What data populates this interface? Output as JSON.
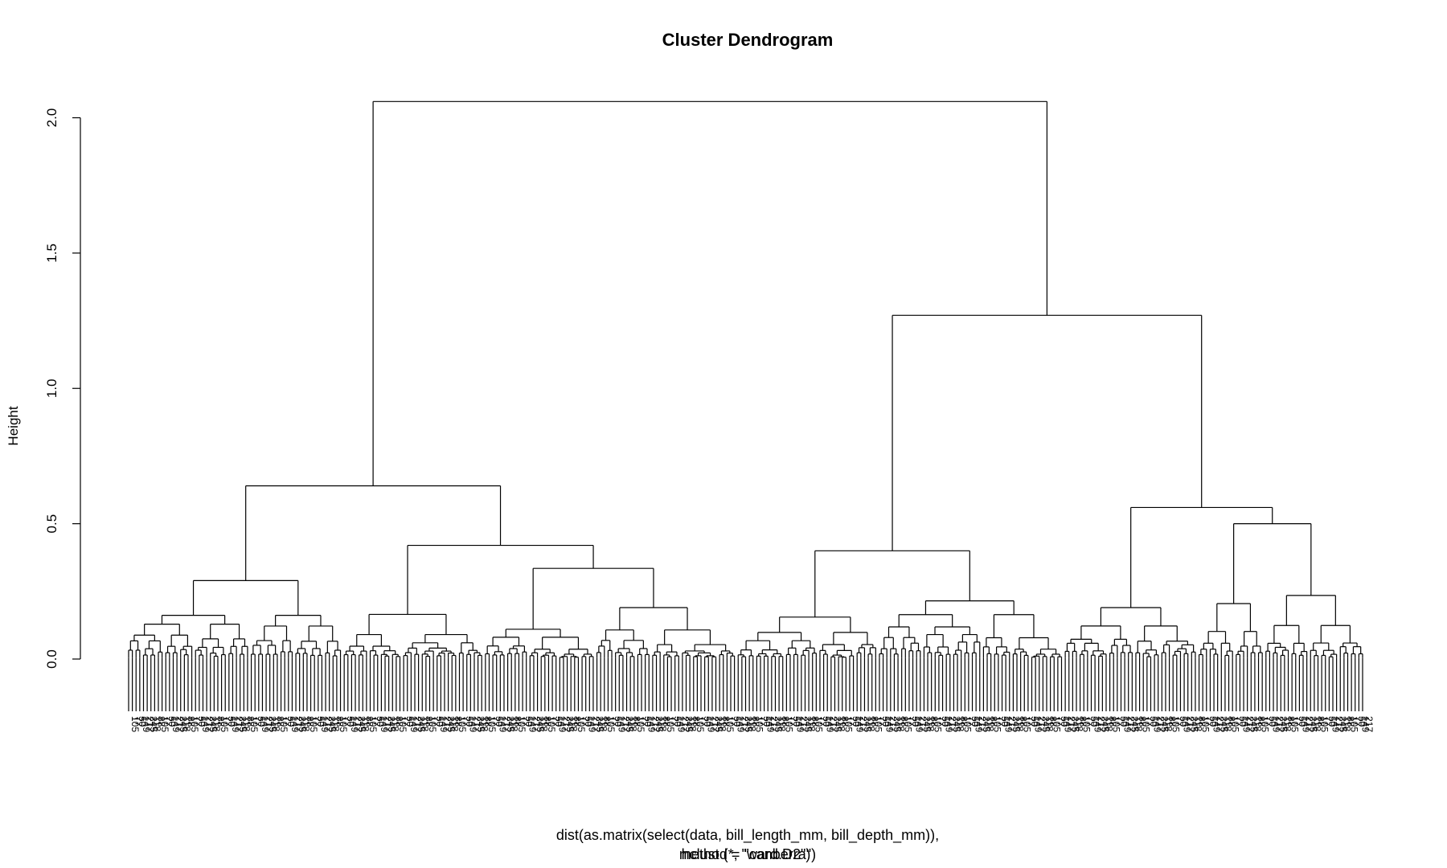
{
  "chart_data": {
    "type": "dendrogram",
    "title": "Cluster Dendrogram",
    "ylabel": "Height",
    "subtitle_lines": [
      "dist(as.matrix(select(data, bill_length_mm, bill_depth_mm)),",
      "hclust (*, \"ward.D2\")",
      "method = \"canberra\")"
    ],
    "yticks": [
      0.0,
      0.5,
      1.0,
      1.5,
      2.0
    ],
    "ytick_labels": [
      "0.0",
      "0.5",
      "1.0",
      "1.5",
      "2.0"
    ],
    "ylim": [
      0,
      2.15
    ],
    "leaf_count": 333,
    "root_height": 2.06,
    "top_merges": [
      {
        "name": "root",
        "height": 2.06
      },
      {
        "name": "left-major",
        "height": 0.64
      },
      {
        "name": "right-major",
        "height": 1.27
      },
      {
        "name": "left-a",
        "height": 0.29
      },
      {
        "name": "left-b",
        "height": 0.42
      },
      {
        "name": "right-a",
        "height": 0.4
      },
      {
        "name": "right-b",
        "height": 0.56
      },
      {
        "name": "right-b2",
        "height": 0.5
      }
    ],
    "sample_leaf_labels": [
      "105",
      "77",
      "50",
      "149",
      "217",
      "245",
      "118",
      "88"
    ]
  }
}
